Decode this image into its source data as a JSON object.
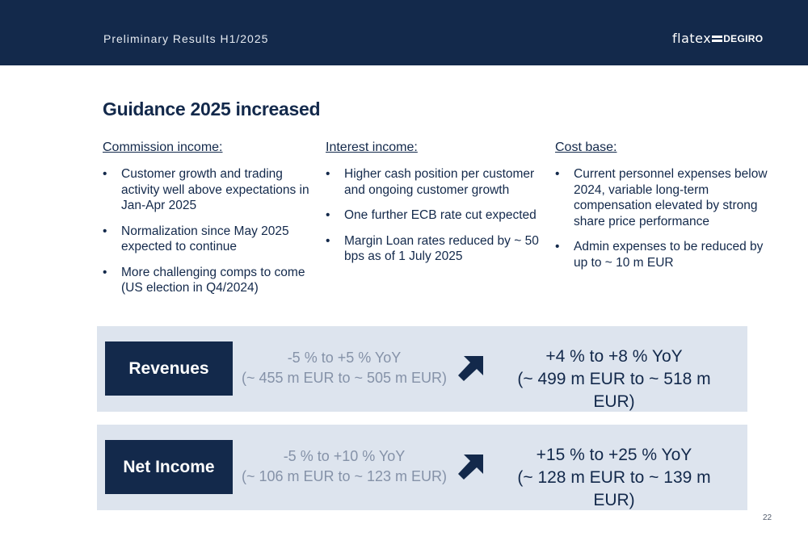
{
  "header": {
    "subtitle": "Preliminary Results H1/2025",
    "logo_left": "flatex",
    "logo_right": "DEGIRO"
  },
  "title": "Guidance 2025 increased",
  "columns": [
    {
      "heading": "Commission income:",
      "bullets": [
        "Customer growth and trading activity well above expectations in Jan-Apr 2025",
        "Normalization since May 2025 expected to continue",
        "More challenging comps to come (US election in Q4/2024)"
      ]
    },
    {
      "heading": "Interest income:",
      "bullets": [
        "Higher cash position per customer and ongoing customer growth",
        "One further ECB rate cut expected",
        "Margin Loan rates reduced by ~ 50 bps as of 1 July 2025"
      ]
    },
    {
      "heading": "Cost base:",
      "bullets": [
        "Current personnel expenses below 2024, variable long-term compensation elevated by strong share price performance",
        "Admin expenses to be reduced by up to ~ 10 m EUR"
      ]
    }
  ],
  "guidance": [
    {
      "label": "Revenues",
      "old_line1": "-5 % to +5 % YoY",
      "old_line2": "(~ 455 m EUR to ~ 505 m EUR)",
      "new_line1": "+4 % to +8 % YoY",
      "new_line2": "(~ 499 m EUR to ~ 518 m EUR)"
    },
    {
      "label": "Net Income",
      "old_line1": "-5 % to +10 % YoY",
      "old_line2": "(~ 106 m EUR to ~ 123 m EUR)",
      "new_line1": "+15 % to +25 % YoY",
      "new_line2": "(~ 128 m EUR to ~ 139 m EUR)"
    }
  ],
  "bullet_char": "•",
  "page_number": "22",
  "colors": {
    "navy": "#13294b",
    "panel": "#dde4ee",
    "muted_text": "#8592a8"
  },
  "icons": {
    "trend": "arrow-up-right-icon"
  }
}
